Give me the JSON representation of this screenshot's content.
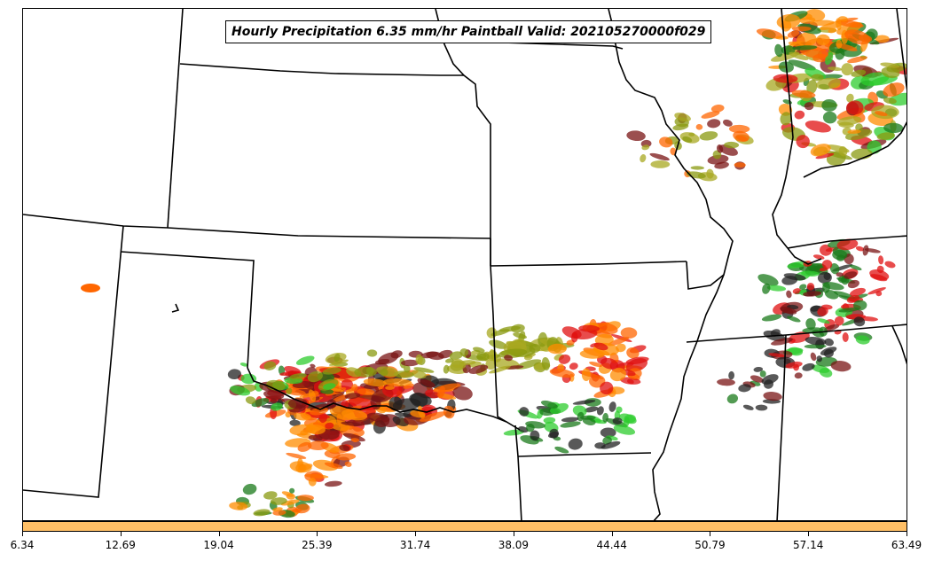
{
  "map": {
    "title": "Hourly Precipitation 6.35 mm/hr Paintball Valid: 202105270000f029",
    "member_colors": [
      "#1a7a1a",
      "#2ecc2e",
      "#ff6600",
      "#ff8c00",
      "#e01010",
      "#7a1414",
      "#8a9a10",
      "#a8a820",
      "#222222"
    ],
    "background": "#ffffff",
    "boundary_color": "#000000"
  },
  "colorbar": {
    "fill_color": "#ffbf66",
    "ticks": [
      "6.34",
      "12.69",
      "19.04",
      "25.39",
      "31.74",
      "38.09",
      "44.44",
      "50.79",
      "57.14",
      "63.49"
    ]
  }
}
